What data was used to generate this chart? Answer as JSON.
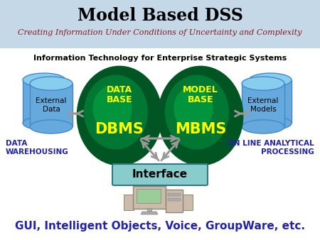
{
  "title": "Model Based DSS",
  "subtitle": "Creating Information Under Conditions of Uncertainty and Complexity",
  "info_tech_label": "Information Technology for Enterprise Strategic Systems",
  "db_label": "DATA\nBASE",
  "mb_label": "MODEL\nBASE",
  "dbms_label": "DBMS",
  "mbms_label": "MBMS",
  "ext_data_label": "External\nData",
  "ext_models_label": "External\nModels",
  "data_wh_label": "DATA\nWAREHOUSING",
  "on_line_label": "ON LINE ANALYTICAL\nPROCESSING",
  "interface_label": "Interface",
  "bottom_label": "GUI, Intelligent Objects, Voice, GroupWare, etc.",
  "bg_color": "#dde8f0",
  "header_bg_top": "#c5d8e8",
  "header_bg_bot": "#a8c4d8",
  "main_bg": "#f0f0f0",
  "title_color": "#000000",
  "subtitle_color": "#8b1a1a",
  "info_tech_color": "#000000",
  "ellipse_dark": "#005522",
  "ellipse_mid": "#007733",
  "ellipse_light": "#00aa44",
  "cylinder_dark": "#4488cc",
  "cylinder_mid": "#66aadd",
  "cylinder_light": "#88ccee",
  "db_text_color": "#ffff00",
  "interface_color_top": "#88cccc",
  "interface_color_bot": "#559999",
  "interface_text_color": "#000000",
  "bottom_text_color": "#2222aa",
  "data_wh_color": "#2222aa",
  "on_line_color": "#2222aa",
  "arrow_color": "#999999",
  "white": "#ffffff"
}
